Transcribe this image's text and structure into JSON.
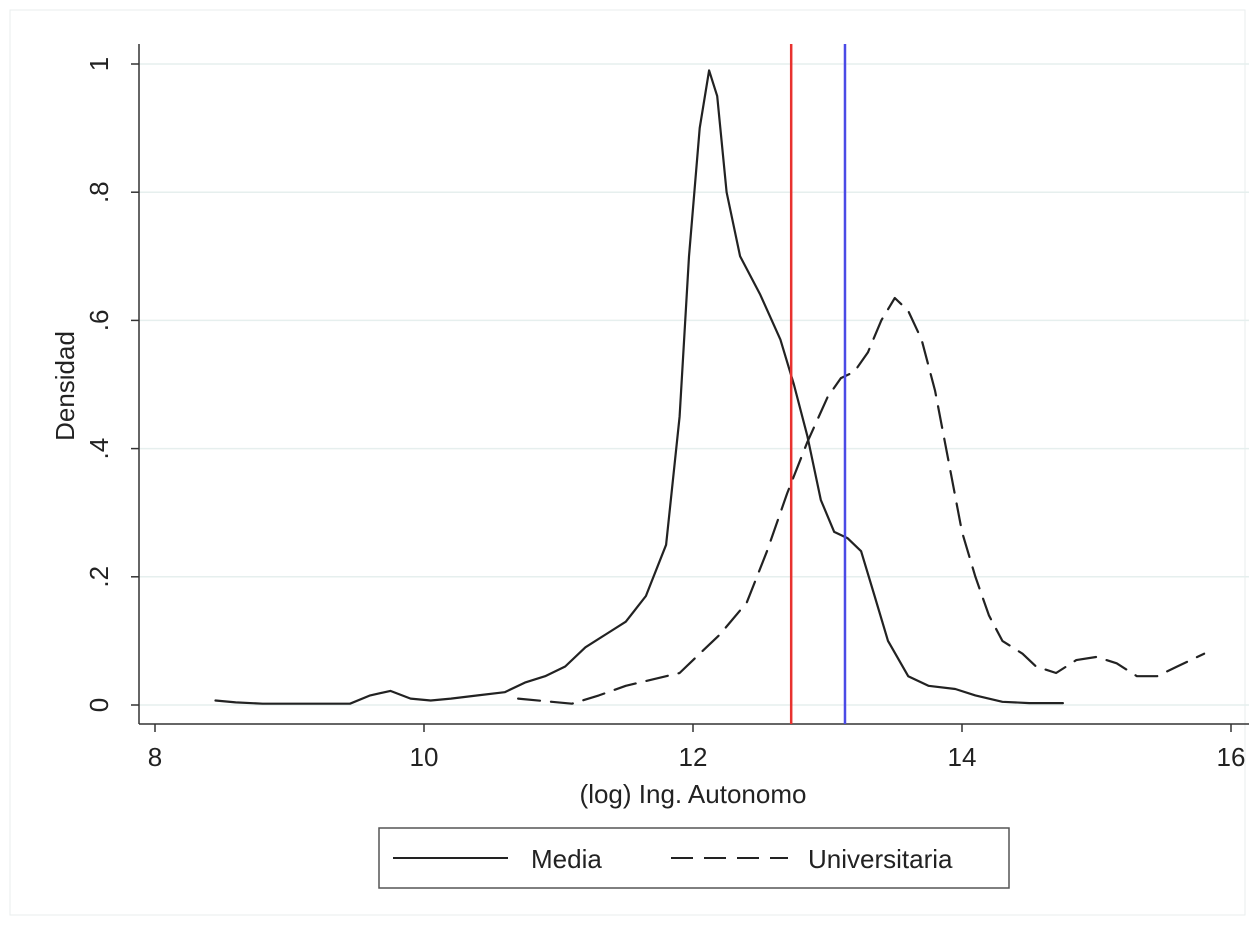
{
  "chart_data": {
    "type": "line",
    "title": "",
    "xlabel": "(log) Ing. Autonomo",
    "ylabel": "Densidad",
    "xlim": [
      8,
      16
    ],
    "ylim": [
      0,
      1
    ],
    "x_ticks": [
      8,
      10,
      12,
      14,
      16
    ],
    "x_tick_labels": [
      "8",
      "10",
      "12",
      "14",
      "16"
    ],
    "y_ticks": [
      0,
      0.2,
      0.4,
      0.6,
      0.8,
      1
    ],
    "y_tick_labels": [
      "0",
      ".2",
      ".4",
      ".6",
      ".8",
      "1"
    ],
    "grid": "horizontal",
    "legend_position": "bottom",
    "series": [
      {
        "name": "Media",
        "style": "solid",
        "color": "#222222",
        "x": [
          8.45,
          8.6,
          8.8,
          9.0,
          9.2,
          9.45,
          9.6,
          9.75,
          9.9,
          10.05,
          10.2,
          10.4,
          10.6,
          10.75,
          10.9,
          11.05,
          11.2,
          11.35,
          11.5,
          11.65,
          11.8,
          11.9,
          11.97,
          12.05,
          12.12,
          12.18,
          12.25,
          12.35,
          12.5,
          12.65,
          12.75,
          12.85,
          12.95,
          13.05,
          13.15,
          13.25,
          13.35,
          13.45,
          13.6,
          13.75,
          13.95,
          14.1,
          14.3,
          14.5,
          14.75
        ],
        "y": [
          0.007,
          0.004,
          0.002,
          0.002,
          0.002,
          0.002,
          0.015,
          0.022,
          0.01,
          0.007,
          0.01,
          0.015,
          0.02,
          0.035,
          0.045,
          0.06,
          0.09,
          0.11,
          0.13,
          0.17,
          0.25,
          0.45,
          0.7,
          0.9,
          0.99,
          0.95,
          0.8,
          0.7,
          0.64,
          0.57,
          0.5,
          0.42,
          0.32,
          0.27,
          0.26,
          0.24,
          0.17,
          0.1,
          0.045,
          0.03,
          0.025,
          0.015,
          0.005,
          0.003,
          0.003
        ]
      },
      {
        "name": "Universitaria",
        "style": "dashed",
        "color": "#222222",
        "x": [
          10.7,
          10.95,
          11.1,
          11.3,
          11.5,
          11.7,
          11.9,
          12.05,
          12.2,
          12.4,
          12.55,
          12.7,
          12.85,
          13.0,
          13.1,
          13.2,
          13.3,
          13.4,
          13.5,
          13.6,
          13.7,
          13.8,
          13.9,
          14.0,
          14.1,
          14.2,
          14.3,
          14.45,
          14.55,
          14.7,
          14.85,
          15.0,
          15.15,
          15.3,
          15.45,
          15.6,
          15.8
        ],
        "y": [
          0.01,
          0.005,
          0.002,
          0.015,
          0.03,
          0.04,
          0.05,
          0.08,
          0.11,
          0.16,
          0.24,
          0.33,
          0.41,
          0.48,
          0.51,
          0.52,
          0.55,
          0.6,
          0.635,
          0.615,
          0.57,
          0.49,
          0.38,
          0.27,
          0.2,
          0.14,
          0.1,
          0.08,
          0.06,
          0.05,
          0.07,
          0.075,
          0.065,
          0.045,
          0.045,
          0.06,
          0.08
        ]
      }
    ],
    "vertical_lines": [
      {
        "x": 12.73,
        "color": "#e8322f"
      },
      {
        "x": 13.13,
        "color": "#4a4ae6"
      }
    ]
  }
}
